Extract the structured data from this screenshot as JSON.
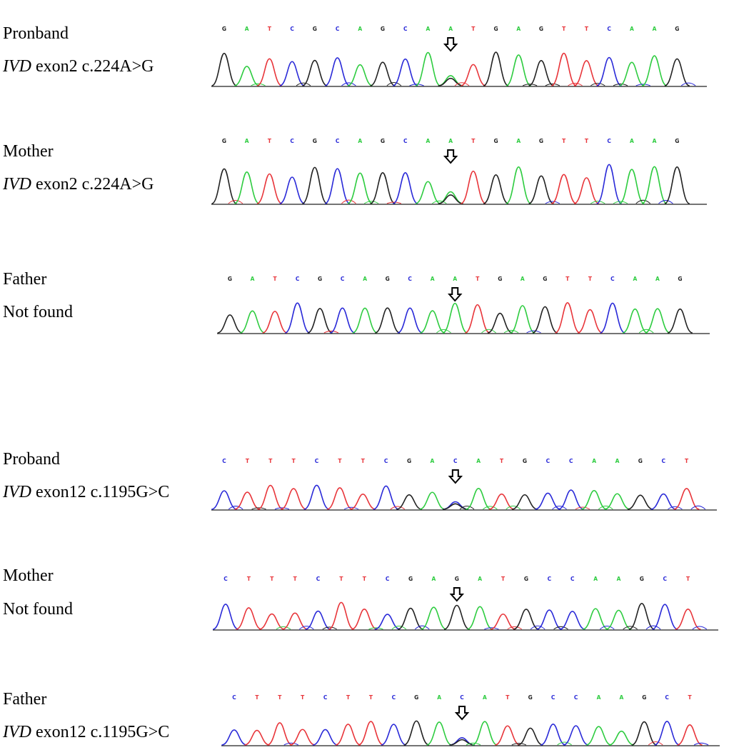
{
  "colors": {
    "A": "#2ecc40",
    "T": "#e8353a",
    "C": "#2a2ad8",
    "G": "#222222"
  },
  "panels": [
    {
      "line1": "Pronband",
      "gene": "",
      "line2": "",
      "seq": "GATCGCAGCAATGAGTTCAAG",
      "mutation_index": 10,
      "secondary_base": "G",
      "marker_icon": "down-arrow-icon"
    },
    {
      "line1": "Mother",
      "gene": "IVD",
      "line2": " exon2 c.224A>G",
      "seq": "GATCGCAGCAATGAGTTCAAG",
      "mutation_index": 10,
      "secondary_base": "G",
      "marker_icon": "down-arrow-icon"
    },
    {
      "line1": "Father",
      "gene": "",
      "line2": "Not found",
      "seq": "GATCGCAGCAATGAGTTCAAG",
      "mutation_index": 10,
      "secondary_base": "",
      "marker_icon": "down-arrow-icon"
    },
    {
      "line1": "Proband",
      "gene": "IVD",
      "line2": " exon12 c.1195G>C",
      "seq": "CTTTCTTCGACATGCCAAGCT",
      "mutation_index": 10,
      "secondary_base": "G",
      "marker_icon": "down-arrow-icon"
    },
    {
      "line1": "Mother",
      "gene": "",
      "line2": "Not found",
      "seq": "CTTTCTTCGAGATGCCAAGCT",
      "mutation_index": 10,
      "secondary_base": "",
      "marker_icon": "down-arrow-icon"
    },
    {
      "line1": "Father",
      "gene": "IVD",
      "line2": " exon12 c.1195G>C",
      "seq": "CTTTCTTCGACATGCCAAGCT",
      "mutation_index": 10,
      "secondary_base": "G",
      "marker_icon": "down-arrow-icon"
    }
  ]
}
